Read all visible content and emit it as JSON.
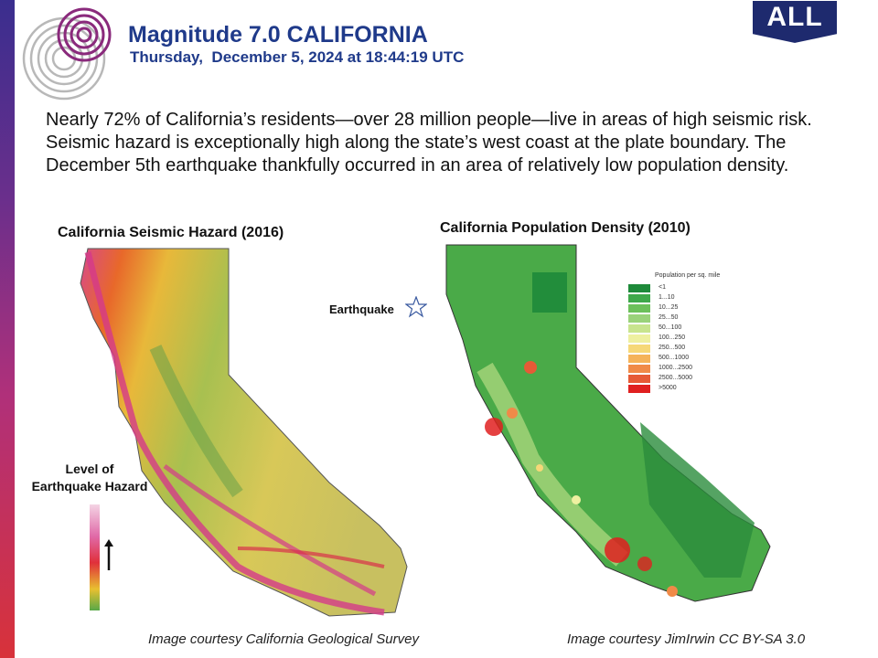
{
  "header": {
    "title": "Magnitude 7.0 CALIFORNIA",
    "subtitle": "Thursday,  December 5, 2024 at 18:44:19 UTC",
    "badge": "ALL"
  },
  "intro": {
    "text": "Nearly 72% of California’s residents—over 28 million people—live in areas of high seismic risk. Seismic hazard is exceptionally high along the state’s west coast at the plate boundary. The December 5th earthquake thankfully occurred in an area of relatively low population density."
  },
  "hazard_map": {
    "title": "California Seismic Hazard (2016)",
    "legend_title_line1": "Level of",
    "legend_title_line2": "Earthquake Hazard",
    "credit": "Image courtesy California Geological Survey"
  },
  "population_map": {
    "title": "California Population Density (2010)",
    "earthquake_label": "Earthquake",
    "legend_heading": "Population per sq. mile",
    "legend": [
      {
        "label": "<1",
        "color": "#1e8a3a"
      },
      {
        "label": "1...10",
        "color": "#3ea84a"
      },
      {
        "label": "10...25",
        "color": "#6cc05a"
      },
      {
        "label": "25...50",
        "color": "#9ad27a"
      },
      {
        "label": "50...100",
        "color": "#c8e48e"
      },
      {
        "label": "100...250",
        "color": "#eef0a0"
      },
      {
        "label": "250...500",
        "color": "#f6d878"
      },
      {
        "label": "500...1000",
        "color": "#f5b35a"
      },
      {
        "label": "1000...2500",
        "color": "#f08a48"
      },
      {
        "label": "2500...5000",
        "color": "#e65a36"
      },
      {
        "label": ">5000",
        "color": "#e02020"
      }
    ],
    "credit": "Image courtesy JimIrwin CC BY-SA 3.0"
  },
  "colors": {
    "title_blue": "#1f3a8a",
    "badge_navy": "#1e2a6e"
  }
}
